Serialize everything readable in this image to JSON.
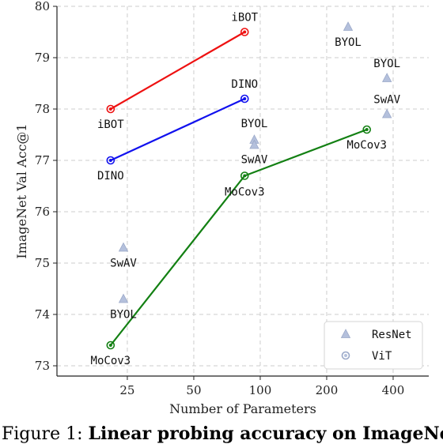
{
  "chart_data": {
    "type": "scatter",
    "title": "",
    "xlabel": "Number of Parameters",
    "ylabel": "ImageNet Val Acc@1",
    "ylim": [
      72.8,
      80
    ],
    "x_ticks": [
      "25",
      "50",
      "100",
      "200",
      "400"
    ],
    "x_tick_values": [
      25,
      50,
      100,
      200,
      400
    ],
    "y_ticks": [
      "73",
      "74",
      "75",
      "76",
      "77",
      "78",
      "79",
      "80"
    ],
    "grid": true,
    "legend": {
      "position": "bottom-right",
      "entries": [
        "ResNet",
        "ViT"
      ]
    },
    "vit_series": [
      {
        "name": "iBOT",
        "color": "#ee1111",
        "points": [
          {
            "x": 21,
            "y": 78.0
          },
          {
            "x": 85,
            "y": 79.5
          }
        ]
      },
      {
        "name": "DINO",
        "color": "#1111ee",
        "points": [
          {
            "x": 21,
            "y": 77.0
          },
          {
            "x": 85,
            "y": 78.2
          }
        ]
      },
      {
        "name": "MoCov3",
        "color": "#138013",
        "points": [
          {
            "x": 21,
            "y": 73.4
          },
          {
            "x": 85,
            "y": 76.7
          },
          {
            "x": 304,
            "y": 77.6
          }
        ]
      }
    ],
    "resnet_points": [
      {
        "name": "SwAV",
        "x": 24,
        "y": 75.3
      },
      {
        "name": "BYOL",
        "x": 24,
        "y": 74.3
      },
      {
        "name": "BYOL",
        "x": 94,
        "y": 77.4
      },
      {
        "name": "SwAV",
        "x": 94,
        "y": 77.3
      },
      {
        "name": "BYOL",
        "x": 250,
        "y": 79.6
      },
      {
        "name": "BYOL",
        "x": 375,
        "y": 78.6
      },
      {
        "name": "SwAV",
        "x": 375,
        "y": 77.9
      }
    ],
    "point_labels": [
      {
        "text": "iBOT",
        "x": 85,
        "y": 79.5,
        "dx": 0,
        "dy": -14
      },
      {
        "text": "iBOT",
        "x": 21,
        "y": 78.0,
        "dx": 0,
        "dy": 24
      },
      {
        "text": "DINO",
        "x": 85,
        "y": 78.2,
        "dx": 0,
        "dy": -14
      },
      {
        "text": "DINO",
        "x": 21,
        "y": 77.0,
        "dx": 0,
        "dy": 24
      },
      {
        "text": "MoCov3",
        "x": 21,
        "y": 73.4,
        "dx": 0,
        "dy": 24
      },
      {
        "text": "MoCov3",
        "x": 85,
        "y": 76.7,
        "dx": 0,
        "dy": 25
      },
      {
        "text": "MoCov3",
        "x": 304,
        "y": 77.6,
        "dx": 0,
        "dy": 24
      },
      {
        "text": "SwAV",
        "x": 24,
        "y": 75.3,
        "dx": 0,
        "dy": 24
      },
      {
        "text": "BYOL",
        "x": 24,
        "y": 74.3,
        "dx": 0,
        "dy": 24
      },
      {
        "text": "BYOL",
        "x": 94,
        "y": 77.4,
        "dx": 0,
        "dy": -16
      },
      {
        "text": "SwAV",
        "x": 94,
        "y": 77.3,
        "dx": 0,
        "dy": 23
      },
      {
        "text": "BYOL",
        "x": 250,
        "y": 79.6,
        "dx": 0,
        "dy": 24
      },
      {
        "text": "BYOL",
        "x": 375,
        "y": 78.6,
        "dx": 0,
        "dy": -14
      },
      {
        "text": "SwAV",
        "x": 375,
        "y": 77.9,
        "dx": 0,
        "dy": -14
      }
    ]
  },
  "caption": {
    "prefix": "Figure 1: ",
    "bold": "Linear probing accuracy on ImageNet"
  }
}
